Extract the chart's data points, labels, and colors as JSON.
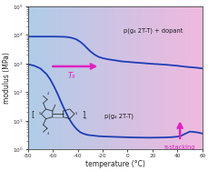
{
  "xlabel": "temperature (°C)",
  "ylabel": "modulus (MPa)",
  "xlim": [
    -80,
    60
  ],
  "ymin": 1.0,
  "ymax": 100000,
  "line_color": "#1e3eb5",
  "label_upper": "p(g₄ 2T-T) + dopant",
  "label_lower": "p(g₄ 2T-T)",
  "arrow_tg_label": "T₉",
  "arrow_pi_label": "π-stacking",
  "arrow_color": "#e020c0",
  "upper_curve_x": [
    -80,
    -75,
    -70,
    -65,
    -60,
    -55,
    -50,
    -47,
    -44,
    -41,
    -38,
    -35,
    -32,
    -29,
    -26,
    -23,
    -20,
    -15,
    -10,
    -5,
    0,
    5,
    10,
    15,
    20,
    25,
    30,
    35,
    40,
    45,
    50,
    55,
    60
  ],
  "upper_curve_y": [
    8800,
    8800,
    8800,
    8800,
    8800,
    8750,
    8600,
    8300,
    7800,
    7000,
    5800,
    4500,
    3300,
    2500,
    2000,
    1700,
    1550,
    1400,
    1300,
    1200,
    1150,
    1100,
    1060,
    1020,
    980,
    950,
    920,
    880,
    840,
    790,
    750,
    720,
    680
  ],
  "lower_curve_x": [
    -80,
    -75,
    -70,
    -65,
    -62,
    -59,
    -56,
    -53,
    -50,
    -47,
    -44,
    -41,
    -38,
    -35,
    -32,
    -29,
    -26,
    -23,
    -20,
    -15,
    -10,
    -5,
    0,
    5,
    10,
    15,
    20,
    25,
    30,
    35,
    40,
    43,
    46,
    50,
    55,
    60
  ],
  "lower_curve_y": [
    950,
    850,
    680,
    430,
    280,
    160,
    85,
    42,
    22,
    12,
    7.5,
    5.2,
    4.0,
    3.5,
    3.2,
    3.1,
    3.0,
    2.9,
    2.85,
    2.8,
    2.75,
    2.7,
    2.65,
    2.62,
    2.6,
    2.58,
    2.58,
    2.6,
    2.62,
    2.68,
    2.8,
    3.0,
    3.5,
    4.2,
    4.0,
    3.6
  ]
}
